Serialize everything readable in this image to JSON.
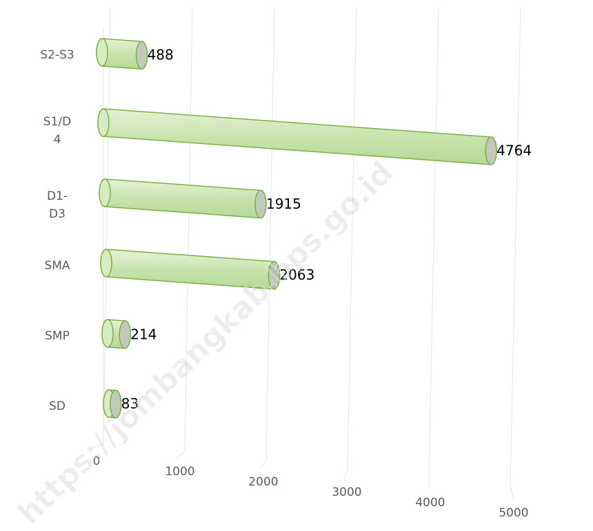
{
  "chart_data": {
    "type": "bar3d",
    "categories": [
      "S2-S3",
      "S1/D\n4",
      "D1-\nD3",
      "SMA",
      "SMP",
      "SD"
    ],
    "values": [
      488,
      4764,
      1915,
      2063,
      214,
      83
    ],
    "color": "#c9e4ae",
    "stroke": "#78b043",
    "xlim": [
      0,
      5000
    ],
    "xticks": [
      0,
      1000,
      2000,
      3000,
      4000,
      5000
    ],
    "grid": true,
    "watermark": "https://jombangkab.bps.go.id"
  }
}
